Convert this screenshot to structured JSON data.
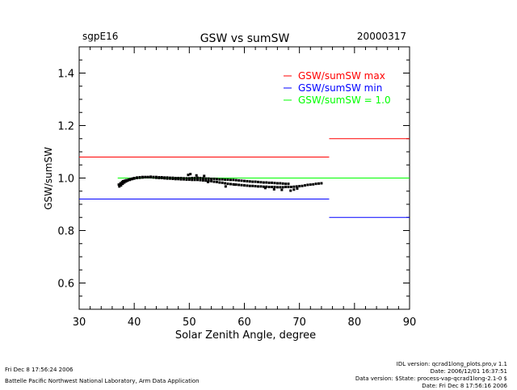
{
  "header": {
    "site": "sgpE16",
    "date": "20000317"
  },
  "chart_data": {
    "type": "scatter",
    "title": "GSW vs sumSW",
    "xlabel": "Solar Zenith Angle, degree",
    "ylabel": "GSW/sumSW",
    "xlim": [
      30,
      90
    ],
    "ylim": [
      0.5,
      1.5
    ],
    "x_ticks": [
      30,
      40,
      50,
      60,
      70,
      80,
      90
    ],
    "y_ticks": [
      0.6,
      0.8,
      1.0,
      1.2,
      1.4
    ],
    "x_tick_labels": [
      "30",
      "40",
      "50",
      "60",
      "70",
      "80",
      "90"
    ],
    "y_tick_labels": [
      "0.6",
      "0.8",
      "1.0",
      "1.2",
      "1.4"
    ],
    "grid": false,
    "legend_position": "top-right",
    "series": [
      {
        "kind": "scatter",
        "color": "#000000",
        "x": [
          37.2,
          37.5,
          37.8,
          38.0,
          38.3,
          38.6,
          39.0,
          39.3,
          39.7,
          40.0,
          40.5,
          41.0,
          41.5,
          42.0,
          42.5,
          43.0,
          43.5,
          44.0,
          44.5,
          45.0,
          45.5,
          46.0,
          46.5,
          47.0,
          47.5,
          48.0,
          48.5,
          49.0,
          49.5,
          50.0,
          50.5,
          51.0,
          51.5,
          52.0,
          52.5,
          53.0,
          53.5,
          54.0,
          54.5,
          55.0,
          55.5,
          56.0,
          56.5,
          57.0,
          57.5,
          58.0,
          58.5,
          59.0,
          59.5,
          60.0,
          60.5,
          61.0,
          61.5,
          62.0,
          62.5,
          63.0,
          63.5,
          64.0,
          64.5,
          65.0,
          65.5,
          66.0,
          66.5,
          67.0,
          67.5,
          68.0,
          68.5,
          69.0,
          69.5,
          70.0,
          70.5,
          71.0,
          71.5,
          72.0,
          72.5,
          73.0,
          73.5,
          74.0
        ],
        "y": [
          0.975,
          0.98,
          0.985,
          0.988,
          0.99,
          0.992,
          0.994,
          0.996,
          0.998,
          1.0,
          1.002,
          1.003,
          1.004,
          1.004,
          1.003,
          1.003,
          1.002,
          1.001,
          1.0,
          1.0,
          0.999,
          0.998,
          0.998,
          0.997,
          0.996,
          0.996,
          0.995,
          0.995,
          0.994,
          0.994,
          0.993,
          0.993,
          0.993,
          0.992,
          0.991,
          0.99,
          0.989,
          0.988,
          0.986,
          0.985,
          0.983,
          0.982,
          0.98,
          0.978,
          0.977,
          0.976,
          0.975,
          0.974,
          0.973,
          0.972,
          0.971,
          0.97,
          0.97,
          0.969,
          0.968,
          0.968,
          0.967,
          0.967,
          0.966,
          0.966,
          0.966,
          0.965,
          0.965,
          0.965,
          0.966,
          0.966,
          0.966,
          0.967,
          0.968,
          0.969,
          0.97,
          0.972,
          0.974,
          0.975,
          0.976,
          0.978,
          0.979,
          0.98
        ]
      },
      {
        "kind": "scatter",
        "color": "#000000",
        "x": [
          37.3,
          37.6,
          37.9,
          38.2,
          38.5,
          38.8,
          39.2,
          39.6,
          40.0,
          40.5,
          41.0,
          41.5,
          42.0,
          42.5,
          43.0,
          43.5,
          44.0,
          44.5,
          45.0,
          45.5,
          46.0,
          46.5,
          47.0,
          47.5,
          48.0,
          48.5,
          49.0,
          49.5,
          50.0,
          50.5,
          51.0,
          51.5,
          52.0,
          52.5,
          53.0,
          53.5,
          54.0,
          54.5,
          55.0,
          55.5,
          56.0,
          56.5,
          57.0,
          57.5,
          58.0,
          58.5,
          59.0,
          59.5,
          60.0,
          60.5,
          61.0,
          61.5,
          62.0,
          62.5,
          63.0,
          63.5,
          64.0,
          64.5,
          65.0,
          65.5,
          66.0,
          66.5,
          67.0,
          67.5,
          68.0
        ],
        "y": [
          0.968,
          0.972,
          0.978,
          0.983,
          0.987,
          0.99,
          0.993,
          0.996,
          0.998,
          1.0,
          1.001,
          1.002,
          1.003,
          1.004,
          1.005,
          1.004,
          1.004,
          1.003,
          1.003,
          1.002,
          1.002,
          1.001,
          1.001,
          1.0,
          1.0,
          1.0,
          0.999,
          0.999,
          0.999,
          1.0,
          1.0,
          1.001,
          1.0,
          0.999,
          0.998,
          0.998,
          0.997,
          0.997,
          0.996,
          0.995,
          0.995,
          0.994,
          0.994,
          0.993,
          0.993,
          0.992,
          0.991,
          0.99,
          0.989,
          0.988,
          0.987,
          0.986,
          0.986,
          0.985,
          0.984,
          0.983,
          0.983,
          0.982,
          0.982,
          0.981,
          0.98,
          0.98,
          0.979,
          0.978,
          0.978
        ]
      },
      {
        "kind": "scatter",
        "color": "#000000",
        "x": [
          49.8,
          50.2,
          51.3,
          52.7,
          53.4,
          56.6,
          58.2,
          63.8,
          65.4,
          66.8,
          68.4,
          69.0,
          69.6
        ],
        "y": [
          1.012,
          1.015,
          1.01,
          1.008,
          0.985,
          0.968,
          0.975,
          0.962,
          0.957,
          0.955,
          0.952,
          0.956,
          0.96
        ]
      },
      {
        "kind": "hline",
        "name": "GSW/sumSW max",
        "color": "#ff0000",
        "segments": [
          {
            "x": [
              30,
              75.4
            ],
            "y": 1.08
          },
          {
            "x": [
              75.4,
              90
            ],
            "y": 1.15
          }
        ]
      },
      {
        "kind": "hline",
        "name": "GSW/sumSW min",
        "color": "#0000ff",
        "segments": [
          {
            "x": [
              30,
              75.4
            ],
            "y": 0.92
          },
          {
            "x": [
              75.4,
              90
            ],
            "y": 0.85
          }
        ]
      },
      {
        "kind": "hline",
        "name": "GSW/sumSW = 1.0",
        "color": "#00ff00",
        "segments": [
          {
            "x": [
              37.0,
              90
            ],
            "y": 1.0
          }
        ]
      }
    ],
    "legend": [
      {
        "text": "GSW/sumSW max",
        "color": "#ff0000"
      },
      {
        "text": "GSW/sumSW min",
        "color": "#0000ff"
      },
      {
        "text": "GSW/sumSW = 1.0",
        "color": "#00ff00"
      }
    ]
  },
  "footer": {
    "left": [
      "Fri Dec  8 17:56:24 2006",
      "Battelle Pacific Northwest National Laboratory, Arm Data Application"
    ],
    "right": [
      "IDL version: qcrad1long_plots.pro,v 1.1",
      "Date: 2006/12/01 16:37:51",
      "Data version: $State: process-vap-qcrad1long-2.1-0 $",
      "Date: Fri Dec  8 17:56:16 2006"
    ]
  }
}
